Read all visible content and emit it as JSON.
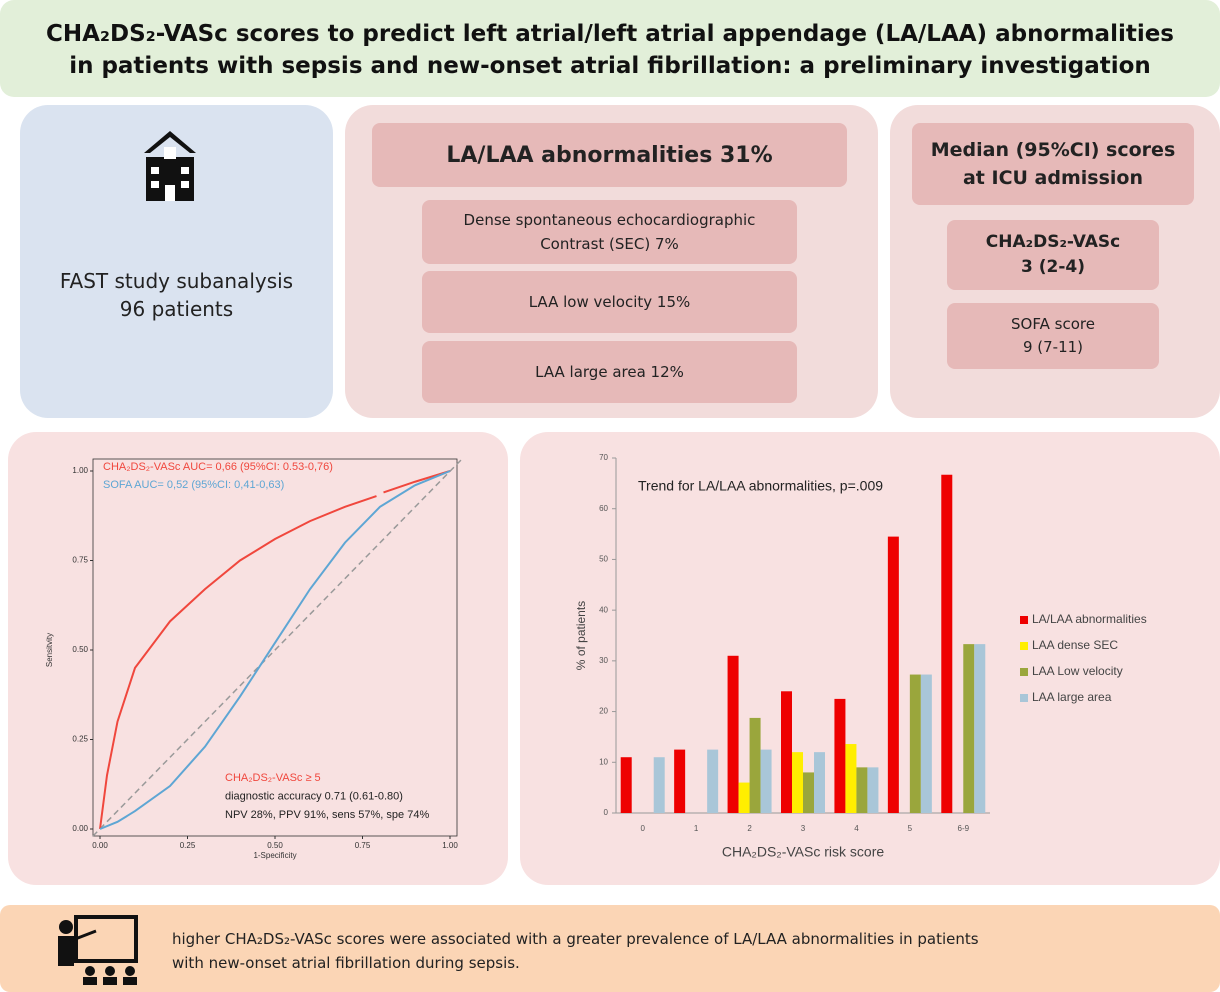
{
  "header": {
    "title_lines": [
      "CHA₂DS₂-VASc scores to predict left atrial/left atrial appendage (LA/LAA) abnormalities",
      "in patients with sepsis and new-onset atrial fibrillation: a preliminary investigation"
    ]
  },
  "study": {
    "lines": [
      "FAST study subanalysis",
      "96 patients"
    ]
  },
  "abnormalities": {
    "heading": "LA/LAA abnormalities 31%",
    "items": [
      [
        "Dense spontaneous echocardiographic",
        "Contrast (SEC) 7%"
      ],
      [
        "LAA  low velocity 15%"
      ],
      [
        "LAA  large area 12%"
      ]
    ]
  },
  "scores": {
    "heading": [
      "Median (95%CI) scores",
      "at ICU admission"
    ],
    "items": [
      [
        "CHA₂DS₂-VASc",
        "3 (2-4)"
      ],
      [
        "SOFA score",
        "9 (7-11)"
      ]
    ]
  },
  "chart_data": [
    {
      "type": "line",
      "xlabel": "1-Specificity",
      "ylabel": "Sensitvity",
      "xlim": [
        0,
        1
      ],
      "ylim": [
        0,
        1
      ],
      "xticks": [
        {
          "value": 0,
          "label": "0.00"
        },
        {
          "value": 0.25,
          "label": "0.25"
        },
        {
          "value": 0.5,
          "label": "0.50"
        },
        {
          "value": 0.75,
          "label": "0.75"
        },
        {
          "value": 1,
          "label": "1.00"
        }
      ],
      "yticks": [
        {
          "value": 0,
          "label": "0.00"
        },
        {
          "value": 0.25,
          "label": "0.25"
        },
        {
          "value": 0.5,
          "label": "0.50"
        },
        {
          "value": 0.75,
          "label": "0.75"
        },
        {
          "value": 1,
          "label": "1.00"
        }
      ],
      "series": [
        {
          "name": "CHA₂DS₂-VASc AUC= 0,66 (95%CI: 0.53-0,76)",
          "color": "#f0473d",
          "x": [
            0,
            0.02,
            0.05,
            0.1,
            0.2,
            0.3,
            0.4,
            0.5,
            0.6,
            0.7,
            0.79,
            null,
            0.81,
            0.9,
            1
          ],
          "values": [
            0,
            0.15,
            0.3,
            0.45,
            0.58,
            0.67,
            0.75,
            0.81,
            0.86,
            0.9,
            0.93,
            null,
            0.94,
            0.97,
            1
          ]
        },
        {
          "name": "SOFA AUC= 0,52 (95%CI: 0,41-0,63)",
          "color": "#5ea6d4",
          "x": [
            0,
            0.05,
            0.1,
            0.2,
            0.3,
            0.4,
            0.5,
            0.6,
            0.7,
            0.8,
            0.9,
            1
          ],
          "values": [
            0,
            0.02,
            0.05,
            0.12,
            0.23,
            0.37,
            0.52,
            0.67,
            0.8,
            0.9,
            0.96,
            1
          ]
        }
      ],
      "annotations": [
        {
          "text": "CHA₂DS₂-VASc ≥ 5",
          "color": "#f0473d"
        },
        {
          "text": "diagnostic accuracy 0.71 (0.61-0.80)",
          "color": "#222222"
        },
        {
          "text": "NPV 28%, PPV 91%, sens 57%, spe 74%",
          "color": "#222222"
        }
      ]
    },
    {
      "type": "bar",
      "title": "Trend for LA/LAA abnormalities, p=.009",
      "xlabel": "CHA₂DS₂-VASc risk score",
      "ylabel": "% of patients",
      "categories": [
        "0",
        "1",
        "2",
        "3",
        "4",
        "5",
        "6-9"
      ],
      "ylim": [
        0,
        70
      ],
      "yticks": [
        0,
        10,
        20,
        30,
        40,
        50,
        60,
        70
      ],
      "series": [
        {
          "name": "LA/LAA abnormalities",
          "color": "#ee0000",
          "values": [
            11,
            12.5,
            31,
            24,
            22.5,
            54.5,
            66.7
          ]
        },
        {
          "name": "LAA dense SEC",
          "color": "#ffee00",
          "values": [
            0,
            0,
            6,
            12,
            13.6,
            0,
            0
          ]
        },
        {
          "name": "LAA Low velocity",
          "color": "#9aa63c",
          "values": [
            0,
            0,
            18.75,
            8,
            9,
            27.3,
            33.3
          ]
        },
        {
          "name": "LAA large area",
          "color": "#a9c6d8",
          "values": [
            11,
            12.5,
            12.5,
            12,
            9,
            27.3,
            33.3
          ]
        }
      ],
      "legend": "right"
    }
  ],
  "conclusion": {
    "lines": [
      "higher CHA₂DS₂-VASc scores were associated with a greater prevalence of LA/LAA  abnormalities in patients",
      "with new-onset atrial fibrillation during sepsis."
    ]
  }
}
